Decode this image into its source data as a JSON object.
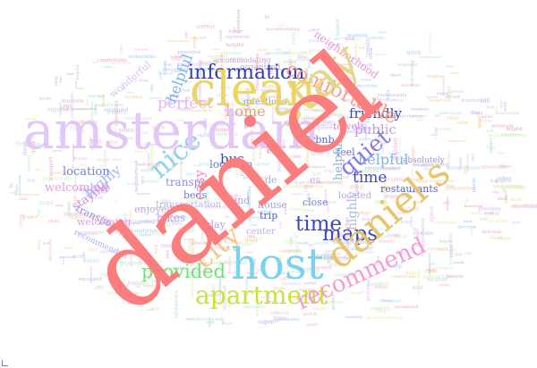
{
  "wordcloud": {
    "words": [
      {
        "text": "daniel",
        "color": "#fb7d7d"
      },
      {
        "text": "amsterdam",
        "color": "#e3c8f5"
      },
      {
        "text": "host",
        "color": "#79d3ee"
      },
      {
        "text": "clean",
        "color": "#ecd562"
      },
      {
        "text": "stay",
        "color": "#e6d88a"
      },
      {
        "text": "daniel's",
        "color": "#e8c46a"
      },
      {
        "text": "apartment",
        "color": "#c9e23d"
      },
      {
        "text": "recommend",
        "color": "#f59bd7"
      },
      {
        "text": "comfortable",
        "color": "#f5a08c"
      },
      {
        "text": "information",
        "color": "#2f3bb5"
      },
      {
        "text": "city",
        "color": "#f5c784"
      },
      {
        "text": "nice",
        "color": "#8fd3ec"
      },
      {
        "text": "time",
        "color": "#3a4bbf"
      },
      {
        "text": "maps",
        "color": "#3949c2"
      },
      {
        "text": "quiet",
        "color": "#8b7bd8"
      },
      {
        "text": "provided",
        "color": "#73e07a"
      },
      {
        "text": "helpful",
        "color": "#7bb7e8"
      },
      {
        "text": "bus",
        "color": "#3b46b8"
      },
      {
        "text": "home",
        "color": "#e9a26b"
      },
      {
        "text": "perfect",
        "color": "#e2b9f2"
      },
      {
        "text": "staying",
        "color": "#d98ae0"
      },
      {
        "text": "easy",
        "color": "#e98fbe"
      },
      {
        "text": "friendly",
        "color": "#3b45b4"
      },
      {
        "text": "public",
        "color": "#c59be8"
      },
      {
        "text": "neighborhood",
        "color": "#ee9ad2"
      },
      {
        "text": "highly",
        "color": "#a6b8ef"
      },
      {
        "text": "location",
        "color": "#7481d8"
      },
      {
        "text": "welcoming",
        "color": "#e19fe3"
      },
      {
        "text": "transport",
        "color": "#8b8fdc"
      },
      {
        "text": "experience",
        "color": "#e3b5e8"
      },
      {
        "text": "bikes",
        "color": "#b9a5ec"
      },
      {
        "text": "beds",
        "color": "#6c79d2"
      },
      {
        "text": "close",
        "color": "#7685d6"
      },
      {
        "text": "located",
        "color": "#c79fe2"
      },
      {
        "text": "center",
        "color": "#c4b0ef"
      },
      {
        "text": "restaurants",
        "color": "#5361c9"
      },
      {
        "text": "questions",
        "color": "#8e9ee0"
      },
      {
        "text": "wonderful",
        "color": "#d8c1f0"
      },
      {
        "text": "airbnb",
        "color": "#5867c6"
      },
      {
        "text": "feel",
        "color": "#6a6fd0"
      },
      {
        "text": "towels",
        "color": "#d58bd2"
      },
      {
        "text": "house",
        "color": "#9aa8e4"
      },
      {
        "text": "trip",
        "color": "#5a62c8"
      },
      {
        "text": "day",
        "color": "#a9a2e3"
      },
      {
        "text": "area",
        "color": "#9dc8ea"
      },
      {
        "text": "de",
        "color": "#a8a8ee"
      },
      {
        "text": "la",
        "color": "#8fb6e9"
      },
      {
        "text": "es",
        "color": "#d0a5ea"
      },
      {
        "text": "und",
        "color": "#b0a0e6"
      },
      {
        "text": "est",
        "color": "#a594e0"
      },
      {
        "text": "organized",
        "color": "#b6a9ec"
      },
      {
        "text": "accommodating",
        "color": "#c4a6e8"
      },
      {
        "text": "absolutely",
        "color": "#9e8fdf"
      },
      {
        "text": "recommended",
        "color": "#aab6ee"
      },
      {
        "text": "enjoyed",
        "color": "#cfa5e6"
      },
      {
        "text": "transportation",
        "color": "#b1bbec"
      },
      {
        "text": "equipped",
        "color": "#c2a6ea"
      },
      {
        "text": "walk",
        "color": "#b8c8ee"
      },
      {
        "text": "stayed",
        "color": "#d0a7e5"
      },
      {
        "text": "bike",
        "color": "#9aa6e4"
      },
      {
        "text": "directions",
        "color": "#b5a2e6"
      },
      {
        "text": "short",
        "color": "#aebde9"
      },
      {
        "text": "higher",
        "color": "#c1a8ec"
      },
      {
        "text": "lovely",
        "color": "#c6a4e4"
      },
      {
        "text": "tram",
        "color": "#9fb2e8"
      },
      {
        "text": "ride",
        "color": "#c8b7ec"
      },
      {
        "text": "space",
        "color": "#b9c4ee"
      },
      {
        "text": "breakfast",
        "color": "#b0a7e6"
      },
      {
        "text": "view",
        "color": "#c0b6ef"
      },
      {
        "text": "room",
        "color": "#aea3e3"
      },
      {
        "text": "safe",
        "color": "#bcc1ec"
      },
      {
        "text": "tips",
        "color": "#c7aee8"
      },
      {
        "text": "kind",
        "color": "#b5a8ea"
      },
      {
        "text": "quick",
        "color": "#a9b8ec"
      },
      {
        "text": "museum",
        "color": "#c1aee9"
      },
      {
        "text": "shops",
        "color": "#b7bde9"
      },
      {
        "text": "street",
        "color": "#c2b2ec"
      },
      {
        "text": "super",
        "color": "#b2a5e4"
      },
      {
        "text": "great",
        "color": "#a7b3ea"
      },
      {
        "text": "cozy",
        "color": "#c8bcee"
      },
      {
        "text": "bed",
        "color": "#b1a0e5"
      },
      {
        "text": "supermarket",
        "color": "#aab4e9"
      },
      {
        "text": "calm",
        "color": "#c4b9ee"
      },
      {
        "text": "canal",
        "color": "#b9a9e7"
      },
      {
        "text": "train",
        "color": "#aebaeb"
      },
      {
        "text": "station",
        "color": "#c3a7e7"
      },
      {
        "text": "wifi",
        "color": "#b3b8ec"
      }
    ]
  }
}
